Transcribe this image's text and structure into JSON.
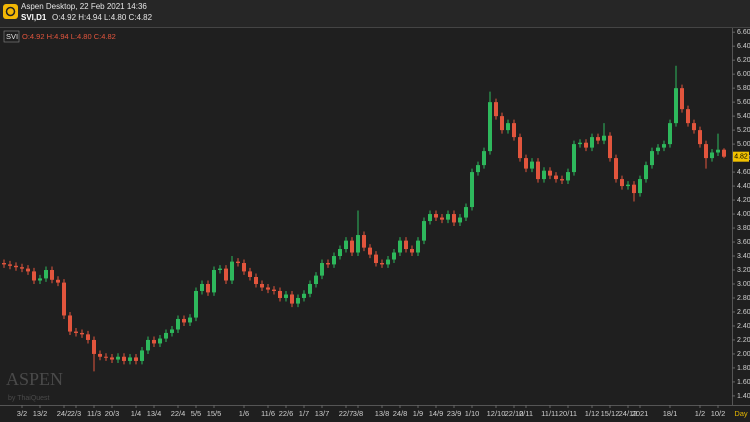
{
  "header": {
    "title": "Aspen Desktop, 22 Feb 2021 14:36",
    "symbol": "SVI,D1",
    "ohlc": "O:4.92 H:4.94 L:4.80 C:4.82"
  },
  "legend": {
    "symbol": "SVI",
    "ohlc": "O:4.92 H:4.94 L:4.80 C:4.82"
  },
  "watermark": {
    "brand": "ASPEN",
    "by": "by ThaiQuest"
  },
  "chart_data": {
    "type": "candlestick",
    "period": "Day",
    "up_color": "#2eb85c",
    "down_color": "#e2553d",
    "ylim": [
      1.27,
      6.66
    ],
    "yticks": [
      {
        "value": 1.4,
        "label": "1.40"
      },
      {
        "value": 1.6,
        "label": "1.60"
      },
      {
        "value": 1.8,
        "label": "1.80"
      },
      {
        "value": 2.0,
        "label": "2.00"
      },
      {
        "value": 2.2,
        "label": "2.20"
      },
      {
        "value": 2.4,
        "label": "2.40"
      },
      {
        "value": 2.6,
        "label": "2.60"
      },
      {
        "value": 2.8,
        "label": "2.80"
      },
      {
        "value": 3.0,
        "label": "3.00"
      },
      {
        "value": 3.2,
        "label": "3.20"
      },
      {
        "value": 3.4,
        "label": "3.40"
      },
      {
        "value": 3.6,
        "label": "3.60"
      },
      {
        "value": 3.8,
        "label": "3.80"
      },
      {
        "value": 4.0,
        "label": "4.00"
      },
      {
        "value": 4.2,
        "label": "4.20"
      },
      {
        "value": 4.4,
        "label": "4.40"
      },
      {
        "value": 4.6,
        "label": "4.60"
      },
      {
        "value": 4.8,
        "label": "4.80"
      },
      {
        "value": 5.0,
        "label": "5.00"
      },
      {
        "value": 5.2,
        "label": "5.20"
      },
      {
        "value": 5.4,
        "label": "5.40"
      },
      {
        "value": 5.6,
        "label": "5.60"
      },
      {
        "value": 5.8,
        "label": "5.80"
      },
      {
        "value": 6.0,
        "label": "6.00"
      },
      {
        "value": 6.2,
        "label": "6.20"
      },
      {
        "value": 6.4,
        "label": "6.40"
      },
      {
        "value": 6.6,
        "label": "6.60"
      }
    ],
    "categories": [
      null,
      null,
      null,
      "3/2",
      null,
      null,
      "13/2",
      null,
      null,
      null,
      "24/2",
      null,
      "2/3",
      null,
      null,
      "11/3",
      null,
      null,
      "20/3",
      null,
      null,
      null,
      "1/4",
      null,
      null,
      "13/4",
      null,
      null,
      null,
      "22/4",
      null,
      null,
      "5/5",
      null,
      null,
      "15/5",
      null,
      null,
      null,
      null,
      "1/6",
      null,
      null,
      null,
      "11/6",
      null,
      null,
      "22/6",
      null,
      null,
      "1/7",
      null,
      null,
      "13/7",
      null,
      null,
      null,
      "22/7",
      null,
      "3/8",
      null,
      null,
      null,
      "13/8",
      null,
      null,
      "24/8",
      null,
      null,
      "1/9",
      null,
      null,
      "14/9",
      null,
      null,
      "23/9",
      null,
      null,
      "1/10",
      null,
      null,
      null,
      "12/10",
      null,
      null,
      "22/10",
      null,
      "2/11",
      null,
      null,
      null,
      "11/11",
      null,
      null,
      "20/11",
      null,
      null,
      null,
      "1/12",
      null,
      null,
      "15/12",
      null,
      null,
      "24/12",
      null,
      "2021",
      null,
      null,
      null,
      null,
      "18/1",
      null,
      null,
      null,
      null,
      "1/2",
      null,
      null,
      "10/2",
      null
    ],
    "series": [
      {
        "name": "SVI",
        "ohlc": [
          [
            3.3,
            3.35,
            3.23,
            3.28
          ],
          [
            3.28,
            3.33,
            3.21,
            3.26
          ],
          [
            3.26,
            3.31,
            3.19,
            3.24
          ],
          [
            3.24,
            3.29,
            3.17,
            3.22
          ],
          [
            3.22,
            3.27,
            3.13,
            3.18
          ],
          [
            3.18,
            3.23,
            3.0,
            3.05
          ],
          [
            3.05,
            3.13,
            3.0,
            3.08
          ],
          [
            3.08,
            3.25,
            3.03,
            3.2
          ],
          [
            3.2,
            3.25,
            3.01,
            3.06
          ],
          [
            3.06,
            3.11,
            2.97,
            3.02
          ],
          [
            3.02,
            3.07,
            2.5,
            2.55
          ],
          [
            2.55,
            2.6,
            2.27,
            2.32
          ],
          [
            2.32,
            2.37,
            2.25,
            2.3
          ],
          [
            2.3,
            2.35,
            2.23,
            2.28
          ],
          [
            2.28,
            2.33,
            2.15,
            2.2
          ],
          [
            2.2,
            2.25,
            1.75,
            2.0
          ],
          [
            2.0,
            2.05,
            1.91,
            1.96
          ],
          [
            1.96,
            2.01,
            1.9,
            1.95
          ],
          [
            1.95,
            2.0,
            1.87,
            1.92
          ],
          [
            1.92,
            2.01,
            1.87,
            1.96
          ],
          [
            1.96,
            2.01,
            1.85,
            1.9
          ],
          [
            1.9,
            2.0,
            1.85,
            1.95
          ],
          [
            1.95,
            2.0,
            1.85,
            1.9
          ],
          [
            1.9,
            2.1,
            1.85,
            2.05
          ],
          [
            2.05,
            2.25,
            2.0,
            2.2
          ],
          [
            2.2,
            2.25,
            2.1,
            2.15
          ],
          [
            2.15,
            2.27,
            2.1,
            2.22
          ],
          [
            2.22,
            2.35,
            2.17,
            2.3
          ],
          [
            2.3,
            2.4,
            2.25,
            2.35
          ],
          [
            2.35,
            2.55,
            2.3,
            2.5
          ],
          [
            2.5,
            2.55,
            2.4,
            2.45
          ],
          [
            2.45,
            2.57,
            2.4,
            2.52
          ],
          [
            2.52,
            2.95,
            2.47,
            2.9
          ],
          [
            2.9,
            3.05,
            2.85,
            3.0
          ],
          [
            3.0,
            3.05,
            2.83,
            2.88
          ],
          [
            2.88,
            3.25,
            2.83,
            3.2
          ],
          [
            3.2,
            3.27,
            3.15,
            3.22
          ],
          [
            3.22,
            3.27,
            3.0,
            3.05
          ],
          [
            3.05,
            3.4,
            3.0,
            3.32
          ],
          [
            3.32,
            3.37,
            3.25,
            3.3
          ],
          [
            3.3,
            3.35,
            3.13,
            3.18
          ],
          [
            3.18,
            3.23,
            3.05,
            3.1
          ],
          [
            3.1,
            3.15,
            2.95,
            3.0
          ],
          [
            3.0,
            3.05,
            2.9,
            2.95
          ],
          [
            2.95,
            3.0,
            2.87,
            2.92
          ],
          [
            2.92,
            2.97,
            2.85,
            2.9
          ],
          [
            2.9,
            2.95,
            2.75,
            2.8
          ],
          [
            2.8,
            2.9,
            2.75,
            2.85
          ],
          [
            2.85,
            2.9,
            2.67,
            2.72
          ],
          [
            2.72,
            2.85,
            2.67,
            2.8
          ],
          [
            2.8,
            2.91,
            2.75,
            2.86
          ],
          [
            2.86,
            3.05,
            2.81,
            3.0
          ],
          [
            3.0,
            3.17,
            2.95,
            3.12
          ],
          [
            3.12,
            3.35,
            3.07,
            3.3
          ],
          [
            3.3,
            3.35,
            3.23,
            3.28
          ],
          [
            3.28,
            3.45,
            3.23,
            3.4
          ],
          [
            3.4,
            3.55,
            3.35,
            3.5
          ],
          [
            3.5,
            3.67,
            3.45,
            3.62
          ],
          [
            3.62,
            3.67,
            3.4,
            3.45
          ],
          [
            3.45,
            4.05,
            3.4,
            3.7
          ],
          [
            3.7,
            3.75,
            3.47,
            3.52
          ],
          [
            3.52,
            3.57,
            3.37,
            3.42
          ],
          [
            3.42,
            3.47,
            3.25,
            3.3
          ],
          [
            3.3,
            3.35,
            3.23,
            3.28
          ],
          [
            3.28,
            3.4,
            3.23,
            3.35
          ],
          [
            3.35,
            3.5,
            3.3,
            3.45
          ],
          [
            3.45,
            3.67,
            3.4,
            3.62
          ],
          [
            3.62,
            3.67,
            3.45,
            3.5
          ],
          [
            3.5,
            3.55,
            3.4,
            3.45
          ],
          [
            3.45,
            3.67,
            3.4,
            3.62
          ],
          [
            3.62,
            3.95,
            3.57,
            3.9
          ],
          [
            3.9,
            4.05,
            3.85,
            4.0
          ],
          [
            4.0,
            4.05,
            3.9,
            3.95
          ],
          [
            3.95,
            4.0,
            3.87,
            3.92
          ],
          [
            3.92,
            4.05,
            3.87,
            4.0
          ],
          [
            4.0,
            4.05,
            3.83,
            3.88
          ],
          [
            3.88,
            4.0,
            3.83,
            3.95
          ],
          [
            3.95,
            4.15,
            3.9,
            4.1
          ],
          [
            4.1,
            4.65,
            4.05,
            4.6
          ],
          [
            4.6,
            4.75,
            4.55,
            4.7
          ],
          [
            4.7,
            4.95,
            4.65,
            4.9
          ],
          [
            4.9,
            5.75,
            4.85,
            5.6
          ],
          [
            5.6,
            5.65,
            5.35,
            5.4
          ],
          [
            5.4,
            5.45,
            5.15,
            5.2
          ],
          [
            5.2,
            5.35,
            5.15,
            5.3
          ],
          [
            5.3,
            5.35,
            5.05,
            5.1
          ],
          [
            5.1,
            5.15,
            4.75,
            4.8
          ],
          [
            4.8,
            4.85,
            4.6,
            4.65
          ],
          [
            4.65,
            4.8,
            4.6,
            4.75
          ],
          [
            4.75,
            4.8,
            4.45,
            4.5
          ],
          [
            4.5,
            4.67,
            4.45,
            4.62
          ],
          [
            4.62,
            4.67,
            4.5,
            4.55
          ],
          [
            4.55,
            4.6,
            4.45,
            4.5
          ],
          [
            4.5,
            4.55,
            4.43,
            4.48
          ],
          [
            4.48,
            4.65,
            4.43,
            4.6
          ],
          [
            4.6,
            5.05,
            4.55,
            5.0
          ],
          [
            5.0,
            5.07,
            4.95,
            5.02
          ],
          [
            5.02,
            5.07,
            4.9,
            4.95
          ],
          [
            4.95,
            5.15,
            4.9,
            5.1
          ],
          [
            5.1,
            5.15,
            5.0,
            5.05
          ],
          [
            5.05,
            5.3,
            5.0,
            5.12
          ],
          [
            5.12,
            5.17,
            4.75,
            4.8
          ],
          [
            4.8,
            4.85,
            4.45,
            4.5
          ],
          [
            4.5,
            4.55,
            4.35,
            4.4
          ],
          [
            4.4,
            4.47,
            4.35,
            4.42
          ],
          [
            4.42,
            4.47,
            4.18,
            4.3
          ],
          [
            4.3,
            4.55,
            4.25,
            4.5
          ],
          [
            4.5,
            4.75,
            4.45,
            4.7
          ],
          [
            4.7,
            4.95,
            4.65,
            4.9
          ],
          [
            4.9,
            5.0,
            4.85,
            4.95
          ],
          [
            4.95,
            5.05,
            4.9,
            5.0
          ],
          [
            5.0,
            5.35,
            4.95,
            5.3
          ],
          [
            5.3,
            6.12,
            5.25,
            5.8
          ],
          [
            5.8,
            5.85,
            5.45,
            5.5
          ],
          [
            5.5,
            5.55,
            5.25,
            5.3
          ],
          [
            5.3,
            5.35,
            5.15,
            5.2
          ],
          [
            5.2,
            5.25,
            4.95,
            5.0
          ],
          [
            5.0,
            5.05,
            4.65,
            4.8
          ],
          [
            4.8,
            4.93,
            4.75,
            4.88
          ],
          [
            4.88,
            5.15,
            4.83,
            4.92
          ],
          [
            4.92,
            4.94,
            4.8,
            4.82
          ]
        ]
      }
    ]
  }
}
